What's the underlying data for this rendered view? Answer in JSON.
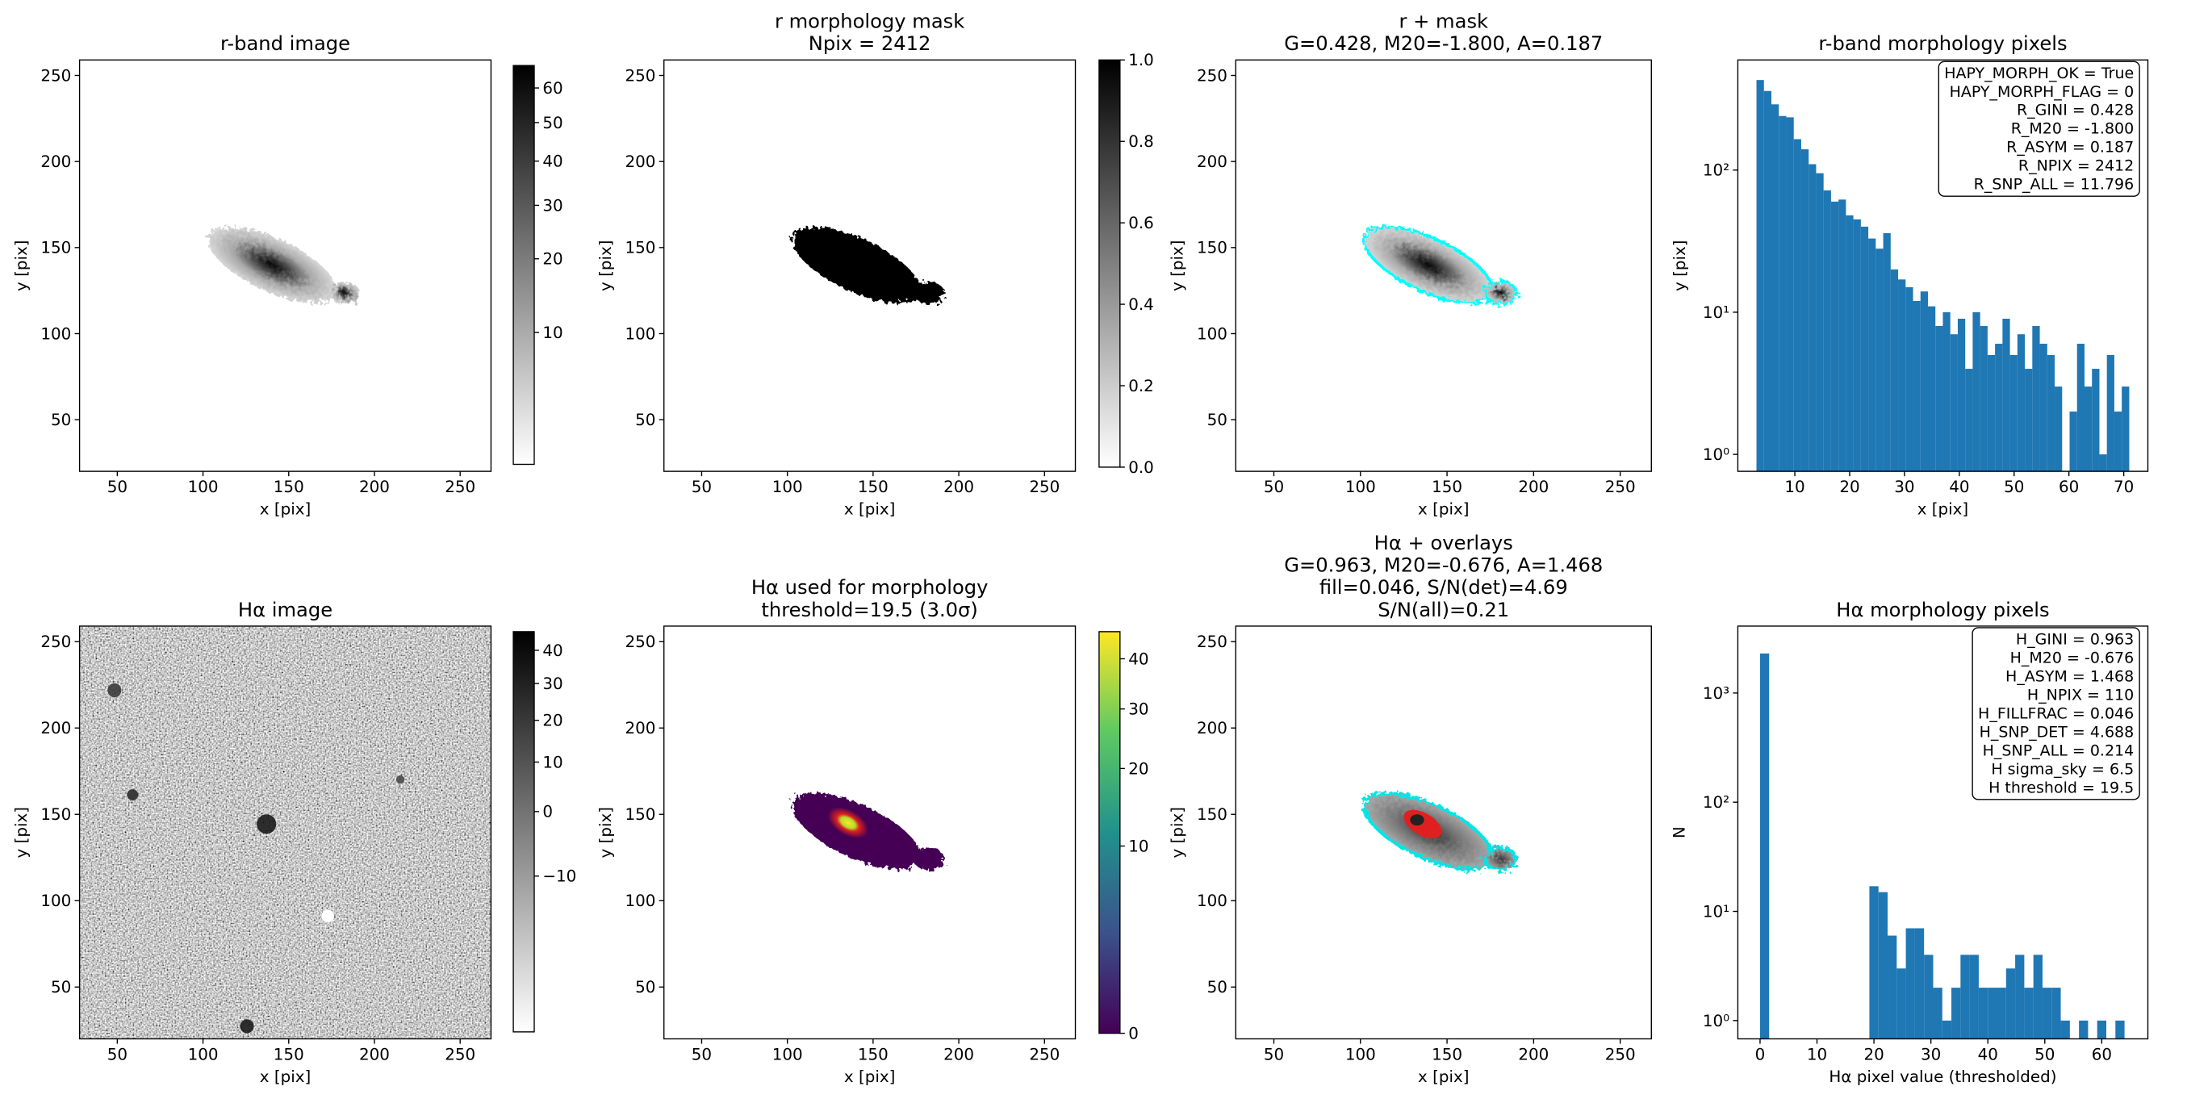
{
  "chart_data": [
    {
      "type": "image",
      "title": [
        "r-band image"
      ],
      "xlabel": "x [pix]",
      "ylabel": "y [pix]",
      "xlim": [
        28,
        268
      ],
      "ylim": [
        20,
        259
      ],
      "xticks": [
        50,
        100,
        150,
        200,
        250
      ],
      "yticks": [
        50,
        100,
        150,
        200,
        250
      ],
      "colorbar": {
        "cmap": "gray_r",
        "scale": "sqrt",
        "lim": [
          3,
          67
        ],
        "ticks": [
          10,
          20,
          30,
          40,
          50,
          60
        ]
      }
    },
    {
      "type": "image",
      "title": [
        "r morphology mask",
        "Npix = 2412"
      ],
      "xlabel": "x [pix]",
      "ylabel": "y [pix]",
      "xlim": [
        28,
        268
      ],
      "ylim": [
        20,
        259
      ],
      "xticks": [
        50,
        100,
        150,
        200,
        250
      ],
      "yticks": [
        50,
        100,
        150,
        200,
        250
      ],
      "colorbar": {
        "cmap": "gray_r",
        "scale": "linear",
        "lim": [
          0,
          1
        ],
        "ticks": [
          {
            "value": 0,
            "label": "0.0"
          },
          {
            "value": 0.2,
            "label": "0.2"
          },
          {
            "value": 0.4,
            "label": "0.4"
          },
          {
            "value": 0.6,
            "label": "0.6"
          },
          {
            "value": 0.8,
            "label": "0.8"
          },
          {
            "value": 1,
            "label": "1.0"
          }
        ]
      }
    },
    {
      "type": "image",
      "title": [
        "r + mask",
        "G=0.428, M20=-1.800, A=0.187"
      ],
      "xlabel": "x [pix]",
      "ylabel": "y [pix]",
      "xlim": [
        28,
        268
      ],
      "ylim": [
        20,
        259
      ],
      "xticks": [
        50,
        100,
        150,
        200,
        250
      ],
      "yticks": [
        50,
        100,
        150,
        200,
        250
      ]
    },
    {
      "type": "histogram",
      "title": [
        "r-band morphology pixels"
      ],
      "xlabel": "x [pix]",
      "ylabel": "y [pix]",
      "color": "#1f77b4",
      "yscale": "log",
      "xlim": [
        -0.4,
        74.4
      ],
      "ylim": [
        0.76,
        595
      ],
      "xticks": [
        10,
        20,
        30,
        40,
        50,
        60,
        70
      ],
      "yticks": [
        {
          "value": 1,
          "label": "10⁰"
        },
        {
          "value": 10,
          "label": "10¹"
        },
        {
          "value": 100,
          "label": "10²"
        }
      ],
      "bins": [
        3,
        4.36,
        5.72,
        7.08,
        8.44,
        9.8,
        11.16,
        12.52,
        13.88,
        15.24,
        16.6,
        17.96,
        19.32,
        20.68,
        22.04,
        23.4,
        24.76,
        26.12,
        27.48,
        28.84,
        30.2,
        31.56,
        32.92,
        34.28,
        35.64,
        37,
        38.36,
        39.72,
        41.08,
        42.44,
        43.8,
        45.16,
        46.52,
        47.88,
        49.24,
        50.6,
        51.96,
        53.32,
        54.68,
        56.04,
        57.4,
        58.76,
        60.12,
        61.48,
        62.84,
        64.2,
        65.56,
        66.92,
        68.28,
        69.64,
        71
      ],
      "values": [
        430,
        360,
        290,
        240,
        235,
        165,
        140,
        110,
        95,
        72,
        60,
        62,
        48,
        45,
        40,
        33,
        28,
        36,
        20,
        17,
        15,
        12,
        14,
        11,
        8,
        10,
        7,
        9,
        4,
        10,
        8,
        5,
        6,
        9,
        5,
        7,
        4,
        8,
        6,
        5,
        3,
        0,
        2,
        6,
        3,
        4,
        1,
        5,
        2,
        3
      ],
      "annotation": [
        "HAPY_MORPH_OK = True",
        "HAPY_MORPH_FLAG = 0",
        "R_GINI = 0.428",
        "R_M20 = -1.800",
        "R_ASYM = 0.187",
        "R_NPIX = 2412",
        "R_SNP_ALL = 11.796"
      ]
    },
    {
      "type": "image",
      "title": [
        "Hα image"
      ],
      "xlabel": "x [pix]",
      "ylabel": "y [pix]",
      "xlim": [
        28,
        268
      ],
      "ylim": [
        20,
        259
      ],
      "xticks": [
        50,
        100,
        150,
        200,
        250
      ],
      "yticks": [
        50,
        100,
        150,
        200,
        250
      ],
      "colorbar": {
        "cmap": "gray_r",
        "scale": "sqrt",
        "lim": [
          -20,
          46
        ],
        "ticks": [
          {
            "value": -10,
            "label": "−10"
          },
          0,
          10,
          20,
          30,
          40
        ]
      }
    },
    {
      "type": "image",
      "title": [
        "Hα used for morphology",
        "threshold=19.5 (3.0σ)"
      ],
      "xlabel": "x [pix]",
      "ylabel": "y [pix]",
      "xlim": [
        28,
        268
      ],
      "ylim": [
        20,
        259
      ],
      "xticks": [
        50,
        100,
        150,
        200,
        250
      ],
      "yticks": [
        50,
        100,
        150,
        200,
        250
      ],
      "colorbar": {
        "cmap": "viridis",
        "scale": "sqrt",
        "lim": [
          0,
          46
        ],
        "ticks": [
          0,
          10,
          20,
          30,
          40
        ]
      }
    },
    {
      "type": "image",
      "title": [
        "Hα + overlays",
        "G=0.963, M20=-0.676, A=1.468",
        "fill=0.046, S/N(det)=4.69",
        "S/N(all)=0.21"
      ],
      "xlabel": "x [pix]",
      "ylabel": "y [pix]",
      "xlim": [
        28,
        268
      ],
      "ylim": [
        20,
        259
      ],
      "xticks": [
        50,
        100,
        150,
        200,
        250
      ],
      "yticks": [
        50,
        100,
        150,
        200,
        250
      ]
    },
    {
      "type": "histogram",
      "title": [
        "Hα morphology pixels"
      ],
      "xlabel": "Hα pixel value (thresholded)",
      "ylabel": "N",
      "color": "#1f77b4",
      "yscale": "log",
      "xlim": [
        -3.9,
        68.1
      ],
      "ylim": [
        0.68,
        4100
      ],
      "xticks": [
        0,
        10,
        20,
        30,
        40,
        50,
        60
      ],
      "yticks": [
        {
          "value": 1,
          "label": "10⁰"
        },
        {
          "value": 10,
          "label": "10¹"
        },
        {
          "value": 100,
          "label": "10²"
        },
        {
          "value": 1000,
          "label": "10³"
        }
      ],
      "bins": [
        0,
        1.6,
        3.2,
        4.8,
        6.4,
        8,
        9.6,
        11.2,
        12.8,
        14.4,
        16,
        17.6,
        19.2,
        20.8,
        22.4,
        24,
        25.6,
        27.2,
        28.8,
        30.4,
        32,
        33.6,
        35.2,
        36.8,
        38.4,
        40,
        41.6,
        43.2,
        44.8,
        46.4,
        48,
        49.6,
        51.2,
        52.8,
        54.4,
        56,
        57.6,
        59.2,
        60.8,
        62.4,
        64
      ],
      "values": [
        2302,
        0,
        0,
        0,
        0,
        0,
        0,
        0,
        0,
        0,
        0,
        0,
        17,
        15,
        6,
        3,
        7,
        7,
        4,
        2,
        1,
        2,
        4,
        4,
        2,
        2,
        2,
        3,
        4,
        2,
        4,
        2,
        2,
        1,
        0,
        1,
        0,
        1,
        0,
        1
      ],
      "annotation": [
        "H_GINI = 0.963",
        "H_M20 = -0.676",
        "H_ASYM = 1.468",
        "H_NPIX = 110",
        "H_FILLFRAC = 0.046",
        "H_SNP_DET = 4.688",
        "H_SNP_ALL = 0.214",
        "H sigma_sky = 6.5",
        "H threshold = 19.5"
      ]
    }
  ]
}
